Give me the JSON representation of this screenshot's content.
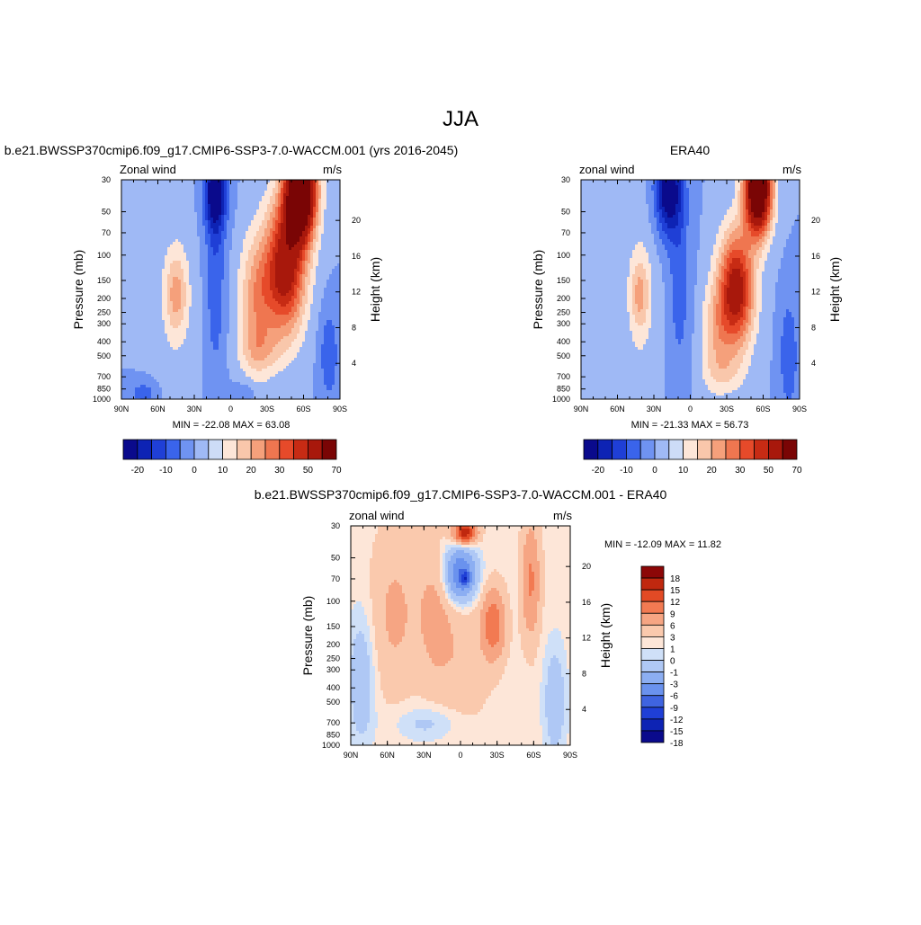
{
  "figure": {
    "title": "JJA",
    "colors": {
      "negative_scale": [
        "#0a0a8c",
        "#0d23b4",
        "#1f3fd6",
        "#3a64eb",
        "#6f93f2",
        "#9fb9f5",
        "#cddcf7"
      ],
      "positive_scale": [
        "#fde6d8",
        "#f9c7ab",
        "#f5a07b",
        "#ef7650",
        "#e64a2a",
        "#c72b14",
        "#a8180c",
        "#7a0505"
      ]
    }
  },
  "chart_data": [
    {
      "type": "heatmap",
      "subtitle": "b.e21.BWSSP370cmip6.f09_g17.CMIP6-SSP3-7.0-WACCM.001 (yrs 2016-2045)",
      "left_label": "Zonal wind",
      "right_label": "m/s",
      "x_tick_labels": [
        "90N",
        "60N",
        "30N",
        "0",
        "30S",
        "60S",
        "90S"
      ],
      "x_ticks": [
        90,
        60,
        30,
        0,
        -30,
        -60,
        -90
      ],
      "y_tick_labels": [
        "30",
        "50",
        "70",
        "100",
        "150",
        "200",
        "250",
        "300",
        "400",
        "500",
        "700",
        "850",
        "1000"
      ],
      "y_ticks": [
        30,
        50,
        70,
        100,
        150,
        200,
        250,
        300,
        400,
        500,
        700,
        850,
        1000
      ],
      "ylabel": "Pressure (mb)",
      "y2label": "Height (km)",
      "y2_tick_labels": [
        "20",
        "16",
        "12",
        "8",
        "4"
      ],
      "y2_ticks": [
        20,
        16,
        12,
        8,
        4
      ],
      "stats": "MIN = -22.08  MAX =  63.08",
      "min": -22.08,
      "max": 63.08,
      "colorbar_labels": [
        "-20",
        "-10",
        "0",
        "10",
        "20",
        "30",
        "50",
        "70"
      ],
      "colorbar_levels": [
        -25,
        -20,
        -15,
        -10,
        -5,
        0,
        5,
        10,
        15,
        20,
        25,
        30,
        40,
        50,
        60,
        70
      ]
    },
    {
      "type": "heatmap",
      "subtitle": "ERA40",
      "left_label": "zonal wind",
      "right_label": "m/s",
      "x_tick_labels": [
        "90N",
        "60N",
        "30N",
        "0",
        "30S",
        "60S",
        "90S"
      ],
      "x_ticks": [
        90,
        60,
        30,
        0,
        -30,
        -60,
        -90
      ],
      "y_tick_labels": [
        "30",
        "50",
        "70",
        "100",
        "150",
        "200",
        "250",
        "300",
        "400",
        "500",
        "700",
        "850",
        "1000"
      ],
      "y_ticks": [
        30,
        50,
        70,
        100,
        150,
        200,
        250,
        300,
        400,
        500,
        700,
        850,
        1000
      ],
      "ylabel": "Pressure (mb)",
      "y2label": "Height (km)",
      "y2_tick_labels": [
        "20",
        "16",
        "12",
        "8",
        "4"
      ],
      "y2_ticks": [
        20,
        16,
        12,
        8,
        4
      ],
      "stats": "MIN = -21.33  MAX =  56.73",
      "min": -21.33,
      "max": 56.73,
      "colorbar_labels": [
        "-20",
        "-10",
        "0",
        "10",
        "20",
        "30",
        "50",
        "70"
      ],
      "colorbar_levels": [
        -25,
        -20,
        -15,
        -10,
        -5,
        0,
        5,
        10,
        15,
        20,
        25,
        30,
        40,
        50,
        60,
        70
      ]
    },
    {
      "type": "heatmap",
      "subtitle": "b.e21.BWSSP370cmip6.f09_g17.CMIP6-SSP3-7.0-WACCM.001 - ERA40",
      "left_label": "zonal wind",
      "right_label": "m/s",
      "x_tick_labels": [
        "90N",
        "60N",
        "30N",
        "0",
        "30S",
        "60S",
        "90S"
      ],
      "x_ticks": [
        90,
        60,
        30,
        0,
        -30,
        -60,
        -90
      ],
      "y_tick_labels": [
        "30",
        "50",
        "70",
        "100",
        "150",
        "200",
        "250",
        "300",
        "400",
        "500",
        "700",
        "850",
        "1000"
      ],
      "y_ticks": [
        30,
        50,
        70,
        100,
        150,
        200,
        250,
        300,
        400,
        500,
        700,
        850,
        1000
      ],
      "ylabel": "Pressure (mb)",
      "y2label": "Height (km)",
      "y2_tick_labels": [
        "20",
        "16",
        "12",
        "8",
        "4"
      ],
      "y2_ticks": [
        20,
        16,
        12,
        8,
        4
      ],
      "stats": "MIN = -12.09  MAX =  11.82",
      "min": -12.09,
      "max": 11.82,
      "colorbar_labels": [
        "18",
        "15",
        "12",
        "9",
        "6",
        "3",
        "1",
        "0",
        "-1",
        "-3",
        "-6",
        "-9",
        "-12",
        "-15",
        "-18"
      ],
      "colorbar_levels": [
        18,
        15,
        12,
        9,
        6,
        3,
        1,
        0,
        -1,
        -3,
        -6,
        -9,
        -12,
        -15,
        -18
      ]
    }
  ]
}
